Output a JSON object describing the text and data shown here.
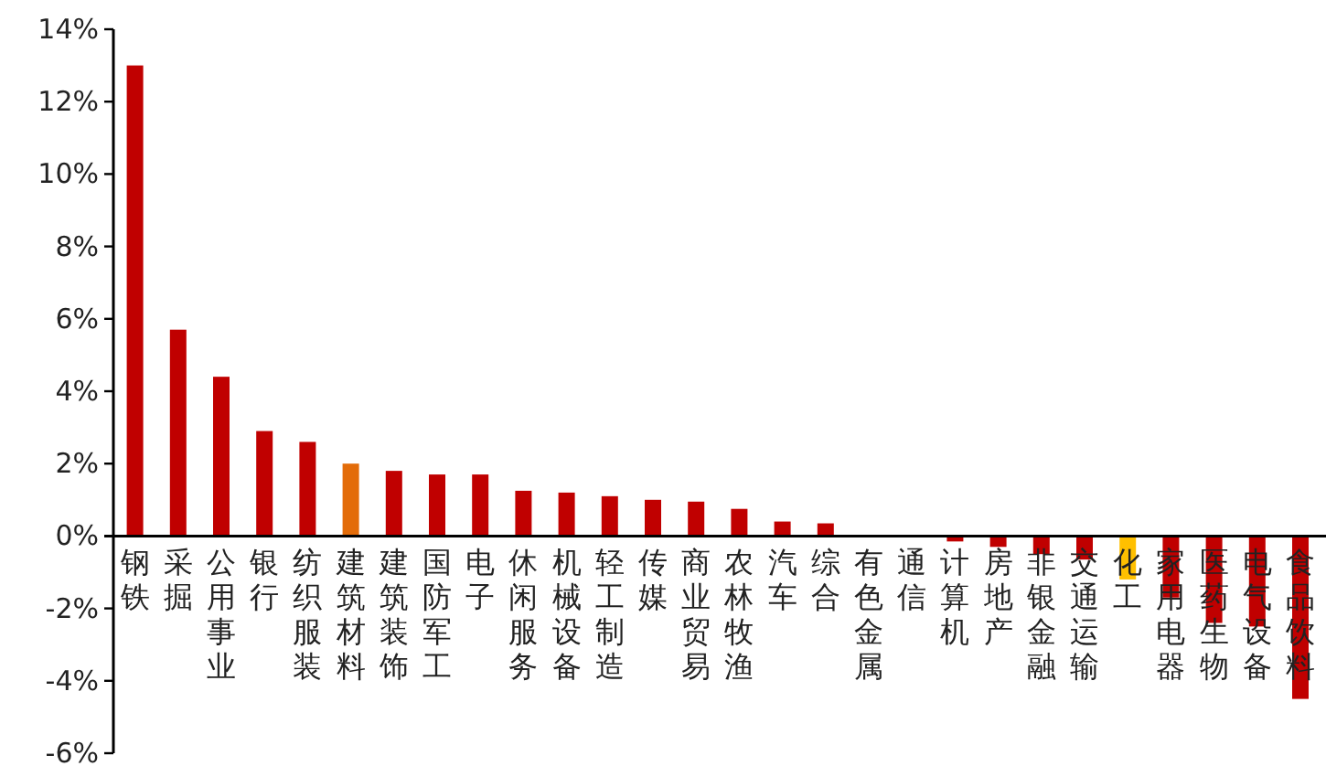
{
  "chart_data": {
    "type": "bar",
    "categories": [
      "钢铁",
      "采掘",
      "公用事业",
      "银行",
      "纺织服装",
      "建筑材料",
      "建筑装饰",
      "国防军工",
      "电子",
      "休闲服务",
      "机械设备",
      "轻工制造",
      "传媒",
      "商业贸易",
      "农林牧渔",
      "汽车",
      "综合",
      "有色金属",
      "通信",
      "计算机",
      "房地产",
      "非银金融",
      "交通运输",
      "化工",
      "家用电器",
      "医药生物",
      "电气设备",
      "食品饮料"
    ],
    "values": [
      13.0,
      5.7,
      4.4,
      2.9,
      2.6,
      2.0,
      1.8,
      1.7,
      1.7,
      1.25,
      1.2,
      1.1,
      1.0,
      0.95,
      0.75,
      0.4,
      0.35,
      0,
      0,
      -0.15,
      -0.3,
      -0.5,
      -0.65,
      -1.2,
      -1.7,
      -2.4,
      -2.5,
      -4.5
    ],
    "colors": [
      "#c00000",
      "#c00000",
      "#c00000",
      "#c00000",
      "#c00000",
      "#e36c09",
      "#c00000",
      "#c00000",
      "#c00000",
      "#c00000",
      "#c00000",
      "#c00000",
      "#c00000",
      "#c00000",
      "#c00000",
      "#c00000",
      "#c00000",
      "#c00000",
      "#c00000",
      "#c00000",
      "#c00000",
      "#c00000",
      "#c00000",
      "#ffc000",
      "#c00000",
      "#c00000",
      "#c00000",
      "#c00000"
    ],
    "ylim": [
      -6,
      14
    ],
    "yticks": [
      {
        "value": -6,
        "label": "-6%"
      },
      {
        "value": -4,
        "label": "-4%"
      },
      {
        "value": -2,
        "label": "-2%"
      },
      {
        "value": 0,
        "label": "0%"
      },
      {
        "value": 2,
        "label": "2%"
      },
      {
        "value": 4,
        "label": "4%"
      },
      {
        "value": 6,
        "label": "6%"
      },
      {
        "value": 8,
        "label": "8%"
      },
      {
        "value": 10,
        "label": "10%"
      },
      {
        "value": 12,
        "label": "12%"
      },
      {
        "value": 14,
        "label": "14%"
      }
    ],
    "grid": false
  }
}
